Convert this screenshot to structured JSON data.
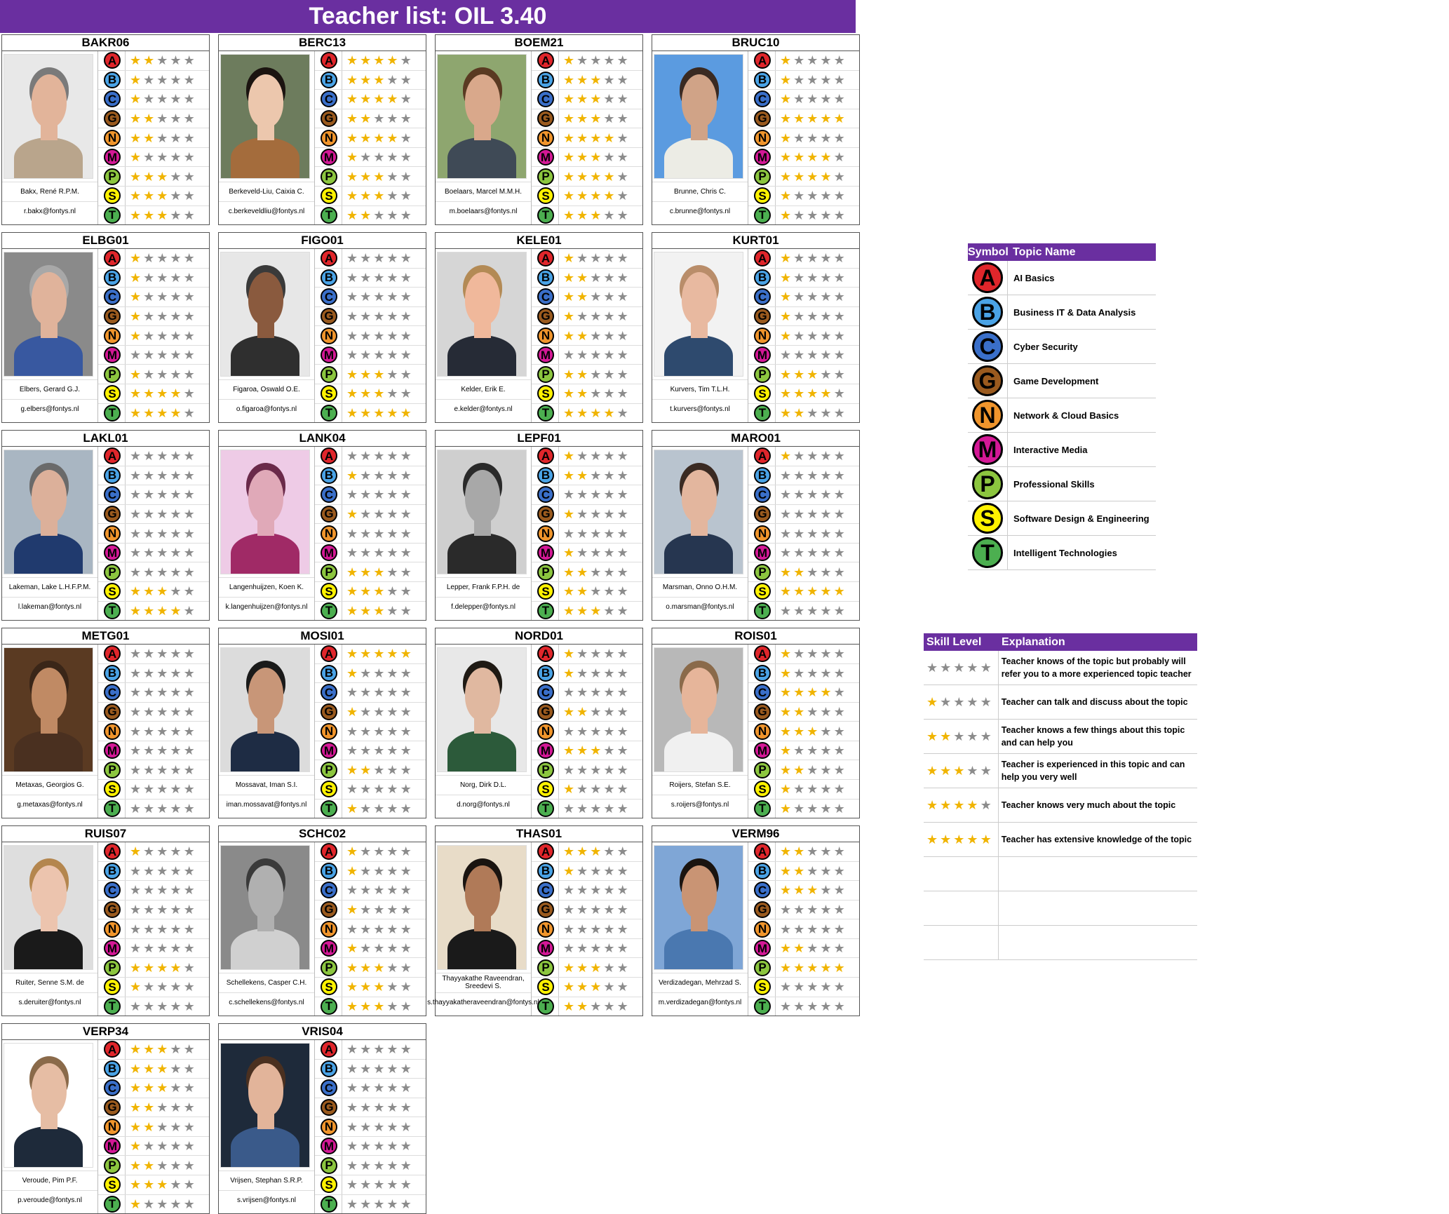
{
  "title": "Teacher list: OIL 3.40",
  "topics": [
    {
      "symbol": "A",
      "name": "AI Basics",
      "color": "#e0262b"
    },
    {
      "symbol": "B",
      "name": "Business IT & Data Analysis",
      "color": "#4aa3e6"
    },
    {
      "symbol": "C",
      "name": "Cyber Security",
      "color": "#3a6fc9"
    },
    {
      "symbol": "G",
      "name": "Game Development",
      "color": "#9a5a1e"
    },
    {
      "symbol": "N",
      "name": "Network & Cloud Basics",
      "color": "#f0952c"
    },
    {
      "symbol": "M",
      "name": "Interactive Media",
      "color": "#d41896"
    },
    {
      "symbol": "P",
      "name": "Professional Skills",
      "color": "#8cc63f"
    },
    {
      "symbol": "S",
      "name": "Software Design & Engineering",
      "color": "#fff200"
    },
    {
      "symbol": "T",
      "name": "Intelligent Technologies",
      "color": "#4caf50"
    }
  ],
  "topic_legend": {
    "symbol_header": "Symbol",
    "name_header": "Topic Name"
  },
  "skill_legend": {
    "level_header": "Skill Level",
    "explanation_header": "Explanation",
    "levels": [
      {
        "stars": 0,
        "text": "Teacher knows of the topic but probably will refer you to a more experienced topic teacher"
      },
      {
        "stars": 1,
        "text": "Teacher can talk and discuss about the topic"
      },
      {
        "stars": 2,
        "text": "Teacher knows a few things about this topic and can help you"
      },
      {
        "stars": 3,
        "text": "Teacher is experienced in this topic and can help you very well"
      },
      {
        "stars": 4,
        "text": "Teacher knows very much about the topic"
      },
      {
        "stars": 5,
        "text": "Teacher has extensive knowledge of the topic"
      }
    ]
  },
  "teachers": [
    {
      "code": "BAKR06",
      "name": "Bakx, René R.P.M.",
      "email": "r.bakx@fontys.nl",
      "photo": {
        "bg": "#e8e8e8",
        "skin": "#e2b49a",
        "hair": "#7a7a7a",
        "shirt": "#b9a58c"
      },
      "ratings": [
        2,
        1,
        1,
        2,
        2,
        1,
        3,
        3,
        3
      ]
    },
    {
      "code": "BERC13",
      "name": "Berkeveld-Liu, Caixia C.",
      "email": "c.berkeveldliu@fontys.nl",
      "photo": {
        "bg": "#6d7c5d",
        "skin": "#ecc7ad",
        "hair": "#1b1410",
        "shirt": "#a46c3c"
      },
      "ratings": [
        4,
        3,
        4,
        2,
        4,
        1,
        3,
        3,
        2
      ]
    },
    {
      "code": "BOEM21",
      "name": "Boelaars, Marcel M.M.H.",
      "email": "m.boelaars@fontys.nl",
      "photo": {
        "bg": "#8ea66f",
        "skin": "#d9a88b",
        "hair": "#5a3a22",
        "shirt": "#3f4a56"
      },
      "ratings": [
        1,
        3,
        3,
        3,
        4,
        3,
        4,
        4,
        3
      ]
    },
    {
      "code": "BRUC10",
      "name": "Brunne, Chris C.",
      "email": "c.brunne@fontys.nl",
      "photo": {
        "bg": "#5b9be0",
        "skin": "#d0a387",
        "hair": "#3a2a22",
        "shirt": "#ecece5"
      },
      "ratings": [
        1,
        1,
        1,
        5,
        1,
        4,
        4,
        1,
        1
      ]
    },
    {
      "code": "ELBG01",
      "name": "Elbers, Gerard G.J.",
      "email": "g.elbers@fontys.nl",
      "photo": {
        "bg": "#8a8a8a",
        "skin": "#e0b39b",
        "hair": "#a8a8a8",
        "shirt": "#3858a0"
      },
      "ratings": [
        1,
        1,
        1,
        1,
        1,
        0,
        1,
        4,
        4
      ]
    },
    {
      "code": "FIGO01",
      "name": "Figaroa, Oswald O.E.",
      "email": "o.figaroa@fontys.nl",
      "photo": {
        "bg": "#e7e7e7",
        "skin": "#8a5a3e",
        "hair": "#3a3a3a",
        "shirt": "#2f2f2f"
      },
      "ratings": [
        0,
        0,
        0,
        0,
        0,
        0,
        3,
        3,
        5
      ]
    },
    {
      "code": "KELE01",
      "name": "Kelder, Erik E.",
      "email": "e.kelder@fontys.nl",
      "photo": {
        "bg": "#d6d6d6",
        "skin": "#f0b89b",
        "hair": "#b38a55",
        "shirt": "#262b36"
      },
      "ratings": [
        1,
        2,
        2,
        1,
        2,
        0,
        2,
        2,
        4
      ]
    },
    {
      "code": "KURT01",
      "name": "Kurvers, Tim T.L.H.",
      "email": "t.kurvers@fontys.nl",
      "photo": {
        "bg": "#f2f2f2",
        "skin": "#e8b9a0",
        "hair": "#b98d6a",
        "shirt": "#2e4a6e"
      },
      "ratings": [
        1,
        1,
        1,
        1,
        1,
        0,
        3,
        4,
        2
      ]
    },
    {
      "code": "LAKL01",
      "name": "Lakeman, Lake L.H.F.P.M.",
      "email": "l.lakeman@fontys.nl",
      "photo": {
        "bg": "#a9b6c2",
        "skin": "#dcb09a",
        "hair": "#6a6a6a",
        "shirt": "#203a6e"
      },
      "ratings": [
        0,
        0,
        0,
        0,
        0,
        0,
        0,
        3,
        4
      ]
    },
    {
      "code": "LANK04",
      "name": "Langenhuijzen, Koen K.",
      "email": "k.langenhuijzen@fontys.nl",
      "photo": {
        "bg": "#eecbe6",
        "skin": "#e0a9b8",
        "hair": "#6a2a4a",
        "shirt": "#a02a66"
      },
      "ratings": [
        0,
        1,
        0,
        1,
        0,
        0,
        3,
        3,
        3
      ]
    },
    {
      "code": "LEPF01",
      "name": "Lepper, Frank F.P.H. de",
      "email": "f.delepper@fontys.nl",
      "photo": {
        "bg": "#cfcfcf",
        "skin": "#a8a8a8",
        "hair": "#2a2a2a",
        "shirt": "#2a2a2a"
      },
      "ratings": [
        1,
        2,
        0,
        1,
        0,
        1,
        2,
        2,
        3
      ]
    },
    {
      "code": "MARO01",
      "name": "Marsman, Onno O.H.M.",
      "email": "o.marsman@fontys.nl",
      "photo": {
        "bg": "#b9c4cf",
        "skin": "#e3b69e",
        "hair": "#3a2a22",
        "shirt": "#263650"
      },
      "ratings": [
        1,
        0,
        0,
        0,
        0,
        0,
        2,
        5,
        0
      ]
    },
    {
      "code": "METG01",
      "name": "Metaxas, Georgios G.",
      "email": "g.metaxas@fontys.nl",
      "photo": {
        "bg": "#5a3a22",
        "skin": "#c08a64",
        "hair": "#3a2618",
        "shirt": "#4a3020"
      },
      "ratings": [
        0,
        0,
        0,
        0,
        0,
        0,
        0,
        0,
        0
      ]
    },
    {
      "code": "MOSI01",
      "name": "Mossavat, Iman S.I.",
      "email": "iman.mossavat@fontys.nl",
      "photo": {
        "bg": "#dcdcdc",
        "skin": "#c89678",
        "hair": "#1a1a1a",
        "shirt": "#1e2c44"
      },
      "ratings": [
        5,
        1,
        0,
        1,
        0,
        0,
        2,
        0,
        1
      ]
    },
    {
      "code": "NORD01",
      "name": "Norg, Dirk D.L.",
      "email": "d.norg@fontys.nl",
      "photo": {
        "bg": "#e8e8e8",
        "skin": "#e0b8a0",
        "hair": "#1f1a14",
        "shirt": "#2c5a3a"
      },
      "ratings": [
        1,
        1,
        0,
        2,
        0,
        3,
        0,
        1,
        0
      ]
    },
    {
      "code": "ROIS01",
      "name": "Roijers, Stefan S.E.",
      "email": "s.roijers@fontys.nl",
      "photo": {
        "bg": "#b8b8b8",
        "skin": "#e6b59a",
        "hair": "#8a6a4a",
        "shirt": "#f0f0f0"
      },
      "ratings": [
        1,
        1,
        4,
        2,
        3,
        1,
        2,
        1,
        1
      ]
    },
    {
      "code": "RUIS07",
      "name": "Ruiter, Senne S.M. de",
      "email": "s.deruiter@fontys.nl",
      "photo": {
        "bg": "#dedede",
        "skin": "#ecc4ae",
        "hair": "#b4864e",
        "shirt": "#1a1a1a"
      },
      "ratings": [
        1,
        0,
        0,
        0,
        0,
        0,
        4,
        1,
        0
      ]
    },
    {
      "code": "SCHC02",
      "name": "Schellekens, Casper C.H.",
      "email": "c.schellekens@fontys.nl",
      "photo": {
        "bg": "#8a8a8a",
        "skin": "#b0b0b0",
        "hair": "#3a3a3a",
        "shirt": "#d0d0d0"
      },
      "ratings": [
        1,
        1,
        0,
        1,
        0,
        1,
        3,
        3,
        3
      ]
    },
    {
      "code": "THAS01",
      "name": "Thayyakathe Raveendran, Sreedevi S.",
      "email": "s.thayyakatheraveendran@fontys.nl",
      "photo": {
        "bg": "#e8dcc8",
        "skin": "#b07a58",
        "hair": "#1a1410",
        "shirt": "#1a1a1a"
      },
      "ratings": [
        3,
        1,
        0,
        0,
        0,
        0,
        3,
        3,
        2
      ]
    },
    {
      "code": "VERM96",
      "name": "Verdizadegan, Mehrzad S.",
      "email": "m.verdizadegan@fontys.nl",
      "photo": {
        "bg": "#7fa6d6",
        "skin": "#c99474",
        "hair": "#1a1410",
        "shirt": "#4a78b0"
      },
      "ratings": [
        2,
        2,
        3,
        0,
        0,
        2,
        5,
        0,
        0
      ]
    },
    {
      "code": "VERP34",
      "name": "Veroude, Pim P.F.",
      "email": "p.veroude@fontys.nl",
      "photo": {
        "bg": "#ffffff",
        "skin": "#e6bda4",
        "hair": "#8a6a4a",
        "shirt": "#1e2a3a"
      },
      "ratings": [
        3,
        3,
        3,
        2,
        2,
        1,
        2,
        3,
        1
      ]
    },
    {
      "code": "VRIS04",
      "name": "Vrijsen, Stephan S.R.P.",
      "email": "s.vrijsen@fontys.nl",
      "photo": {
        "bg": "#1e2a3a",
        "skin": "#e2b49a",
        "hair": "#4a3020",
        "shirt": "#3a5a8a"
      },
      "ratings": [
        0,
        0,
        0,
        0,
        0,
        0,
        0,
        0,
        0
      ]
    }
  ]
}
